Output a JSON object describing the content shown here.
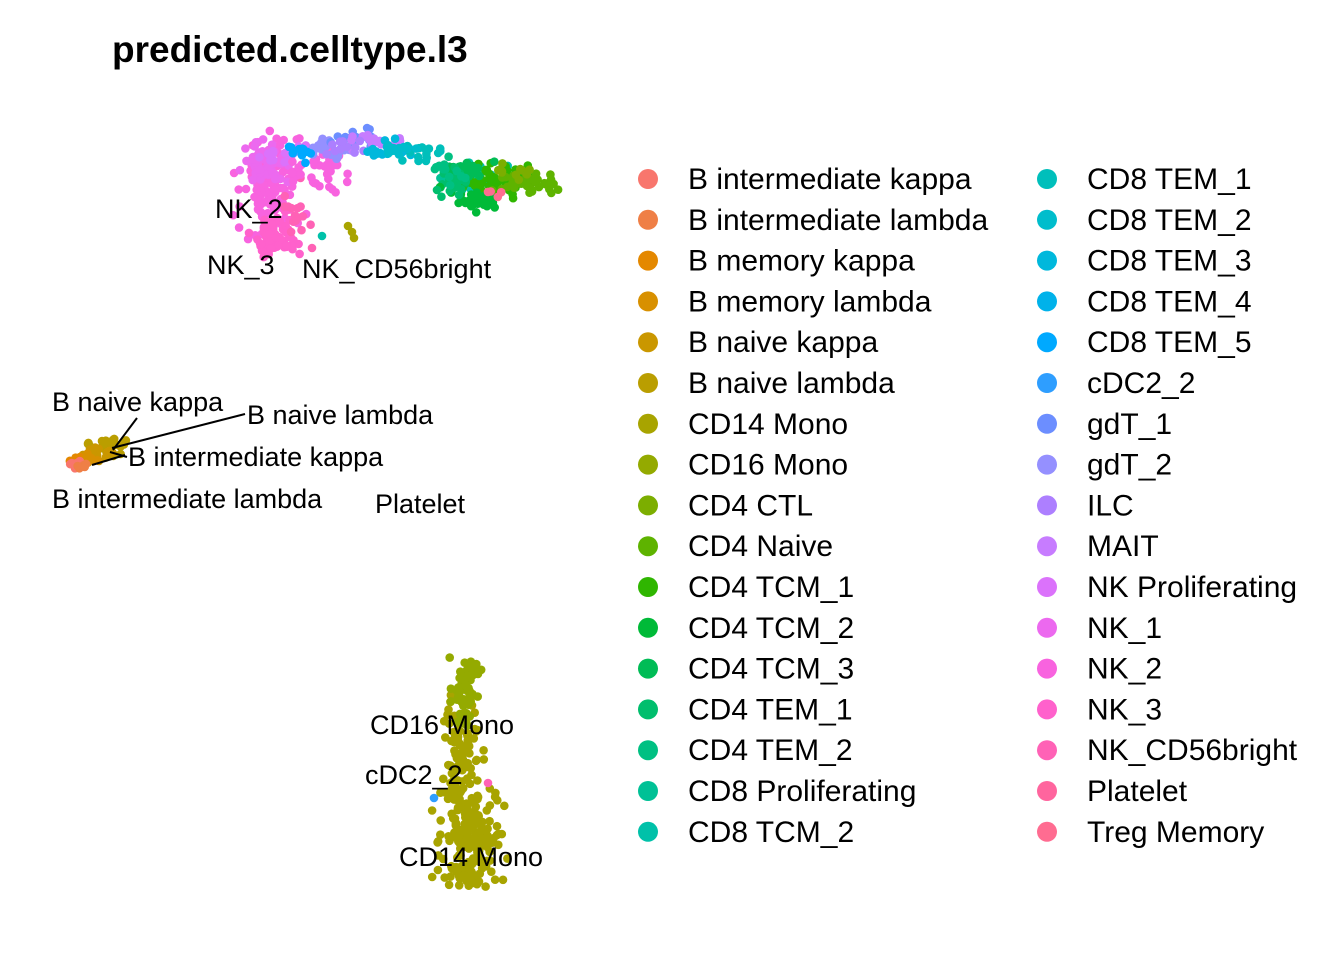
{
  "chart_data": {
    "type": "scatter",
    "title": "predicted.celltype.l3",
    "xlabel": "",
    "ylabel": "",
    "grid": false,
    "axes": "hidden",
    "legend_position": "right",
    "legend_columns": 2,
    "categories": [
      {
        "name": "B intermediate kappa",
        "color": "#F8766D"
      },
      {
        "name": "B intermediate lambda",
        "color": "#EF7F46"
      },
      {
        "name": "B memory kappa",
        "color": "#E48800"
      },
      {
        "name": "B memory lambda",
        "color": "#D89000"
      },
      {
        "name": "B naive kappa",
        "color": "#CA9700"
      },
      {
        "name": "B naive lambda",
        "color": "#BA9E00"
      },
      {
        "name": "CD14 Mono",
        "color": "#A8A400"
      },
      {
        "name": "CD16 Mono",
        "color": "#94AA00"
      },
      {
        "name": "CD4 CTL",
        "color": "#7CAE00"
      },
      {
        "name": "CD4 Naive",
        "color": "#5EB300"
      },
      {
        "name": "CD4 TCM_1",
        "color": "#2FB600"
      },
      {
        "name": "CD4 TCM_2",
        "color": "#00BA38"
      },
      {
        "name": "CD4 TCM_3",
        "color": "#00BC56"
      },
      {
        "name": "CD4 TEM_1",
        "color": "#00BE6D"
      },
      {
        "name": "CD4 TEM_2",
        "color": "#00C082"
      },
      {
        "name": "CD8 Proliferating",
        "color": "#00C196"
      },
      {
        "name": "CD8 TCM_2",
        "color": "#00C1A9"
      },
      {
        "name": "CD8 TEM_1",
        "color": "#00BFBB"
      },
      {
        "name": "CD8 TEM_2",
        "color": "#00BDCC"
      },
      {
        "name": "CD8 TEM_3",
        "color": "#00B8DC"
      },
      {
        "name": "CD8 TEM_4",
        "color": "#00B2EA"
      },
      {
        "name": "CD8 TEM_5",
        "color": "#00A9FF"
      },
      {
        "name": "cDC2_2",
        "color": "#2E9EFF"
      },
      {
        "name": "gdT_1",
        "color": "#6C8EFF"
      },
      {
        "name": "gdT_2",
        "color": "#9590FF"
      },
      {
        "name": "ILC",
        "color": "#AD7FFF"
      },
      {
        "name": "MAIT",
        "color": "#C77CFF"
      },
      {
        "name": "NK Proliferating",
        "color": "#DB72FB"
      },
      {
        "name": "NK_1",
        "color": "#EC69EF"
      },
      {
        "name": "NK_2",
        "color": "#F863DF"
      },
      {
        "name": "NK_3",
        "color": "#FF61CC"
      },
      {
        "name": "NK_CD56bright",
        "color": "#FF62B6"
      },
      {
        "name": "Platelet",
        "color": "#FF659E"
      },
      {
        "name": "Treg Memory",
        "color": "#FF6C91"
      }
    ],
    "cluster_labels": [
      "NK_2",
      "NK_3",
      "NK_CD56bright",
      "B naive kappa",
      "B naive lambda",
      "B intermediate kappa",
      "B intermediate lambda",
      "Platelet",
      "CD16 Mono",
      "cDC2_2",
      "CD14 Mono"
    ]
  }
}
